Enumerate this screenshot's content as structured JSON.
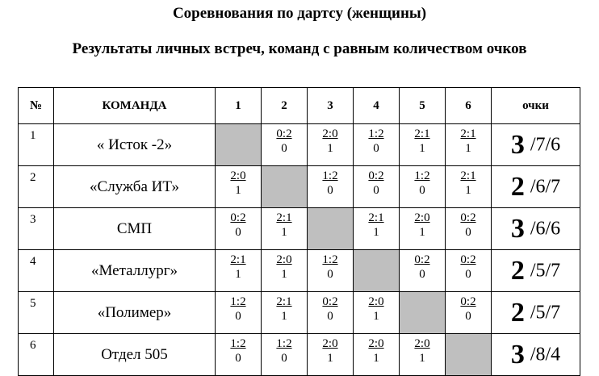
{
  "title": "Соревнования по дартсу (женщины)",
  "subtitle": "Результаты личных встреч, команд с равным количеством очков",
  "headers": {
    "num": "№",
    "team": "КОМАНДА",
    "opponents": [
      "1",
      "2",
      "3",
      "4",
      "5",
      "6"
    ],
    "points": "очки"
  },
  "rows": [
    {
      "num": "1",
      "team": "« Исток -2»",
      "cells": [
        null,
        {
          "score": "0:2",
          "pts": "0"
        },
        {
          "score": "2:0",
          "pts": "1"
        },
        {
          "score": "1:2",
          "pts": "0"
        },
        {
          "score": "2:1",
          "pts": "1"
        },
        {
          "score": "2:1",
          "pts": "1"
        }
      ],
      "points_big": "3",
      "points_rest": "/7/6"
    },
    {
      "num": "2",
      "team": "«Служба ИТ»",
      "cells": [
        {
          "score": "2:0",
          "pts": "1"
        },
        null,
        {
          "score": "1:2",
          "pts": "0"
        },
        {
          "score": "0:2",
          "pts": "0"
        },
        {
          "score": "1:2",
          "pts": "0"
        },
        {
          "score": "2:1",
          "pts": "1"
        }
      ],
      "points_big": "2",
      "points_rest": "/6/7"
    },
    {
      "num": "3",
      "team": "СМП",
      "cells": [
        {
          "score": "0:2",
          "pts": "0"
        },
        {
          "score": "2:1",
          "pts": "1"
        },
        null,
        {
          "score": "2:1",
          "pts": "1"
        },
        {
          "score": "2:0",
          "pts": "1"
        },
        {
          "score": "0:2",
          "pts": "0"
        }
      ],
      "points_big": "3",
      "points_rest": "/6/6"
    },
    {
      "num": "4",
      "team": "«Металлург»",
      "cells": [
        {
          "score": "2:1",
          "pts": "1"
        },
        {
          "score": "2:0",
          "pts": "1"
        },
        {
          "score": "1:2",
          "pts": "0"
        },
        null,
        {
          "score": "0:2",
          "pts": "0"
        },
        {
          "score": "0:2",
          "pts": "0"
        }
      ],
      "points_big": "2",
      "points_rest": "/5/7"
    },
    {
      "num": "5",
      "team": "«Полимер»",
      "cells": [
        {
          "score": "1:2",
          "pts": "0"
        },
        {
          "score": "2:1",
          "pts": "1"
        },
        {
          "score": "0:2",
          "pts": "0"
        },
        {
          "score": "2:0",
          "pts": "1"
        },
        null,
        {
          "score": "0:2",
          "pts": "0"
        }
      ],
      "points_big": "2",
      "points_rest": "/5/7"
    },
    {
      "num": "6",
      "team": "Отдел 505",
      "cells": [
        {
          "score": "1:2",
          "pts": "0"
        },
        {
          "score": "1:2",
          "pts": "0"
        },
        {
          "score": "2:0",
          "pts": "1"
        },
        {
          "score": "2:0",
          "pts": "1"
        },
        {
          "score": "2:0",
          "pts": "1"
        },
        null
      ],
      "points_big": "3",
      "points_rest": "/8/4"
    }
  ]
}
